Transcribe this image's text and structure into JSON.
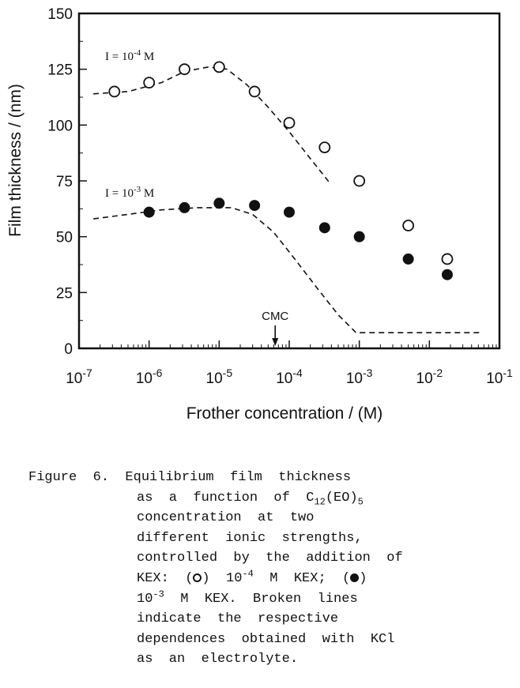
{
  "chart_data": {
    "type": "scatter",
    "x_scale": "log",
    "xlim": [
      1e-07,
      0.1
    ],
    "ylim": [
      0,
      150
    ],
    "x_tick_values": [
      1e-07,
      1e-06,
      1e-05,
      0.0001,
      0.001,
      0.01,
      0.1
    ],
    "x_tick_labels": [
      {
        "base": "10",
        "exp": "-7"
      },
      {
        "base": "10",
        "exp": "-6"
      },
      {
        "base": "10",
        "exp": "-5"
      },
      {
        "base": "10",
        "exp": "-4"
      },
      {
        "base": "10",
        "exp": "-3"
      },
      {
        "base": "10",
        "exp": "-2"
      },
      {
        "base": "10",
        "exp": "-1"
      }
    ],
    "y_ticks": [
      0,
      25,
      50,
      75,
      100,
      125,
      150
    ],
    "y_tick_labels": [
      "0",
      "25",
      "50",
      "75",
      "100",
      "125",
      "150"
    ],
    "xlabel": "Frother concentration  /  (M)",
    "ylabel": "Film thickness  /  (nm)",
    "grid": false,
    "series": [
      {
        "label_prefix": "I = 10",
        "label_exp": "-4",
        "label_suffix": " M",
        "marker": "open-circle",
        "points": [
          {
            "x": 3.2e-07,
            "y": 115
          },
          {
            "x": 1e-06,
            "y": 119
          },
          {
            "x": 3.2e-06,
            "y": 125
          },
          {
            "x": 1e-05,
            "y": 126
          },
          {
            "x": 3.2e-05,
            "y": 115
          },
          {
            "x": 0.0001,
            "y": 101
          },
          {
            "x": 0.00032,
            "y": 90
          },
          {
            "x": 0.001,
            "y": 75
          },
          {
            "x": 0.005,
            "y": 55
          },
          {
            "x": 0.018,
            "y": 40
          }
        ],
        "dashed_curve": [
          {
            "x": 1.6e-07,
            "y": 114
          },
          {
            "x": 5e-07,
            "y": 115
          },
          {
            "x": 1.5e-06,
            "y": 119
          },
          {
            "x": 3.2e-06,
            "y": 124
          },
          {
            "x": 7e-06,
            "y": 126
          },
          {
            "x": 1.3e-05,
            "y": 125
          },
          {
            "x": 2.5e-05,
            "y": 118
          },
          {
            "x": 5e-05,
            "y": 108
          },
          {
            "x": 0.0001,
            "y": 97
          },
          {
            "x": 0.0002,
            "y": 85
          },
          {
            "x": 0.00038,
            "y": 74
          }
        ]
      },
      {
        "label_prefix": "I = 10",
        "label_exp": "-3",
        "label_suffix": " M",
        "marker": "filled-circle",
        "points": [
          {
            "x": 1e-06,
            "y": 61
          },
          {
            "x": 3.2e-06,
            "y": 63
          },
          {
            "x": 1e-05,
            "y": 65
          },
          {
            "x": 3.2e-05,
            "y": 64
          },
          {
            "x": 0.0001,
            "y": 61
          },
          {
            "x": 0.00032,
            "y": 54
          },
          {
            "x": 0.001,
            "y": 50
          },
          {
            "x": 0.005,
            "y": 40
          },
          {
            "x": 0.018,
            "y": 33
          }
        ],
        "dashed_curve": [
          {
            "x": 1.6e-07,
            "y": 58
          },
          {
            "x": 5e-07,
            "y": 60
          },
          {
            "x": 1.5e-06,
            "y": 62
          },
          {
            "x": 5e-06,
            "y": 63
          },
          {
            "x": 1.5e-05,
            "y": 63
          },
          {
            "x": 3e-05,
            "y": 60
          },
          {
            "x": 6e-05,
            "y": 52
          },
          {
            "x": 0.00012,
            "y": 40
          },
          {
            "x": 0.00025,
            "y": 27
          },
          {
            "x": 0.0005,
            "y": 15
          },
          {
            "x": 0.0009,
            "y": 7
          },
          {
            "x": 0.055,
            "y": 7
          }
        ]
      }
    ],
    "annotations": [
      {
        "text": "CMC",
        "arrow_at_x": 6.3e-05
      }
    ]
  },
  "caption": {
    "line1": "Figure  6.  Equilibrium  film  thickness",
    "line2": "as  a  function  of  C",
    "line2_sub1": "12",
    "line2_mid": "(EO)",
    "line2_sub2": "5",
    "line3": "concentration  at  two",
    "line4": "different  ionic  strengths,",
    "line5": "controlled  by  the  addition  of",
    "line6_a": "KEX:  (",
    "line6_b": ")  10",
    "line6_exp1": "-4",
    "line6_c": "  M  KEX;  (",
    "line6_d": ")",
    "line7_a": "10",
    "line7_exp": "-3",
    "line7_b": "  M  KEX.  Broken  lines",
    "line8": "indicate  the  respective",
    "line9": "dependences  obtained  with  KCl",
    "line10": "as  an  electrolyte."
  }
}
